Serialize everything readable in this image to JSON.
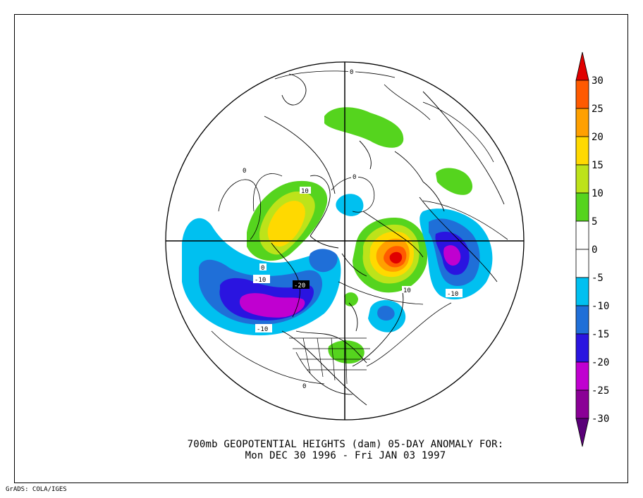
{
  "title": {
    "line1": "700mb GEOPOTENTIAL HEIGHTS (dam)   05-DAY ANOMALY FOR:",
    "line2": "Mon DEC 30 1996 - Fri JAN 03 1997"
  },
  "credit": "GrADS: COLA/IGES",
  "colorbar": {
    "levels": [
      {
        "label": "30",
        "color": "#e00000"
      },
      {
        "label": "25",
        "color": "#ff5a00"
      },
      {
        "label": "20",
        "color": "#ffa000"
      },
      {
        "label": "15",
        "color": "#ffd900"
      },
      {
        "label": "10",
        "color": "#bde31a"
      },
      {
        "label": "5",
        "color": "#55d41e"
      },
      {
        "label": "0",
        "color": "#ffffff"
      },
      {
        "label": "-5",
        "color": "#ffffff"
      },
      {
        "label": "-10",
        "color": "#00c0f0"
      },
      {
        "label": "-15",
        "color": "#1f6fd8"
      },
      {
        "label": "-20",
        "color": "#2a14e0"
      },
      {
        "label": "-25",
        "color": "#c000d0"
      },
      {
        "label": "-30",
        "color": "#8a0096"
      }
    ],
    "top_color": "#e00000",
    "bottom_color": "#5a0078"
  },
  "contour_labels": [
    "0",
    "0",
    "0",
    "0",
    "10",
    "-10",
    "-20",
    "-10",
    "10",
    "-10",
    "0"
  ]
}
